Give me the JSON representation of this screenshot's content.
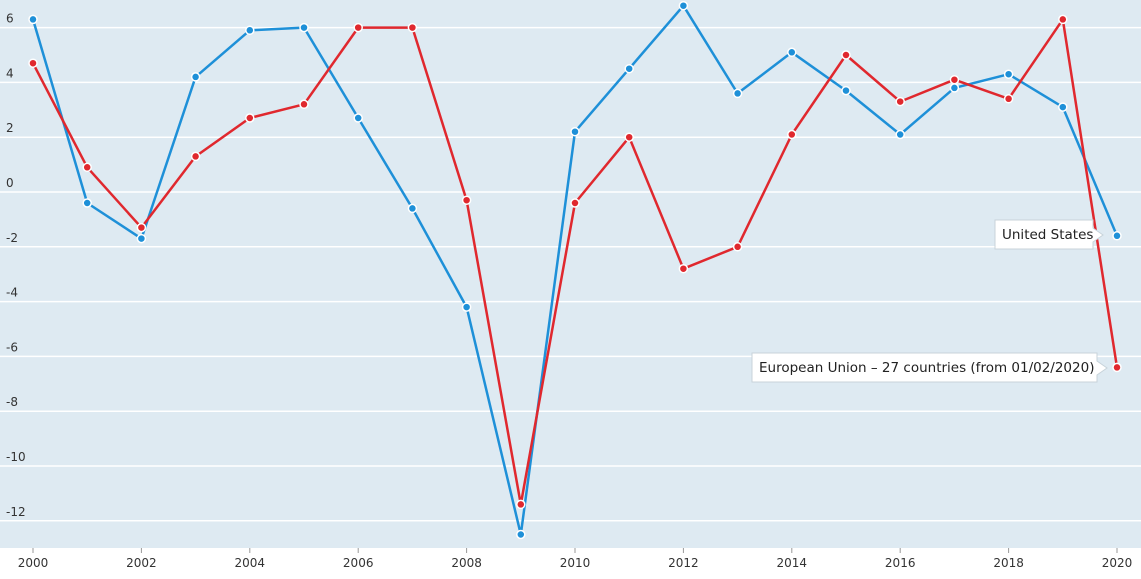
{
  "chart_data": {
    "type": "line",
    "title": "",
    "xlabel": "",
    "ylabel": "",
    "x": [
      2000,
      2001,
      2002,
      2003,
      2004,
      2005,
      2006,
      2007,
      2008,
      2009,
      2010,
      2011,
      2012,
      2013,
      2014,
      2015,
      2016,
      2017,
      2018,
      2019,
      2020
    ],
    "x_ticks": [
      "2000",
      "2002",
      "2004",
      "2006",
      "2008",
      "2010",
      "2012",
      "2014",
      "2016",
      "2018",
      "2020"
    ],
    "y_ticks": [
      "6",
      "4",
      "2",
      "0",
      "-2",
      "-4",
      "-6",
      "-8",
      "-10",
      "-12"
    ],
    "xlim": [
      2000,
      2020
    ],
    "ylim": [
      -13,
      7
    ],
    "grid": true,
    "legend": "none",
    "series": [
      {
        "name": "United States",
        "color": "#1e90d8",
        "values": [
          6.3,
          -0.4,
          -1.7,
          4.2,
          5.9,
          6.0,
          2.7,
          -0.6,
          -4.2,
          -12.5,
          2.2,
          4.5,
          6.8,
          3.6,
          5.1,
          3.7,
          2.1,
          3.8,
          4.3,
          3.1,
          -1.6
        ]
      },
      {
        "name": "European Union - 27 countries (from 01/02/2020)",
        "color": "#e0282e",
        "values": [
          4.7,
          0.9,
          -1.3,
          1.3,
          2.7,
          3.2,
          6.0,
          6.0,
          -0.3,
          -11.4,
          -0.4,
          2.0,
          -2.8,
          -2.0,
          2.1,
          5.0,
          3.3,
          4.1,
          3.4,
          6.3,
          -6.4
        ]
      }
    ],
    "annotations": [
      {
        "text": "United States"
      },
      {
        "text": "European Union – 27 countries (from 01/02/2020)"
      }
    ]
  }
}
